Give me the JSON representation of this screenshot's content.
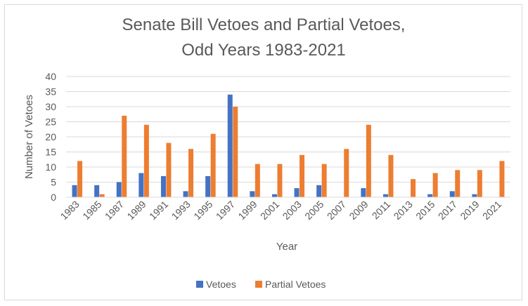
{
  "chart_data": {
    "type": "bar",
    "title_lines": [
      "Senate Bill Vetoes and Partial Vetoes,",
      "Odd Years 1983-2021"
    ],
    "xlabel": "Year",
    "ylabel": "Number of Vetoes",
    "ylim": [
      0,
      40
    ],
    "yticks": [
      0,
      5,
      10,
      15,
      20,
      25,
      30,
      35,
      40
    ],
    "grid": true,
    "legend_position": "bottom",
    "categories": [
      "1983",
      "1985",
      "1987",
      "1989",
      "1991",
      "1993",
      "1995",
      "1997",
      "1999",
      "2001",
      "2003",
      "2005",
      "2007",
      "2009",
      "2011",
      "2013",
      "2015",
      "2017",
      "2019",
      "2021"
    ],
    "series": [
      {
        "name": "Vetoes",
        "color": "#4472c4",
        "values": [
          4,
          4,
          5,
          8,
          7,
          2,
          7,
          34,
          2,
          1,
          3,
          4,
          0,
          3,
          1,
          0,
          1,
          2,
          1,
          0
        ]
      },
      {
        "name": "Partial Vetoes",
        "color": "#ed7d31",
        "values": [
          12,
          1,
          27,
          24,
          18,
          16,
          21,
          30,
          11,
          11,
          14,
          11,
          16,
          24,
          14,
          6,
          8,
          9,
          9,
          12
        ]
      }
    ]
  }
}
